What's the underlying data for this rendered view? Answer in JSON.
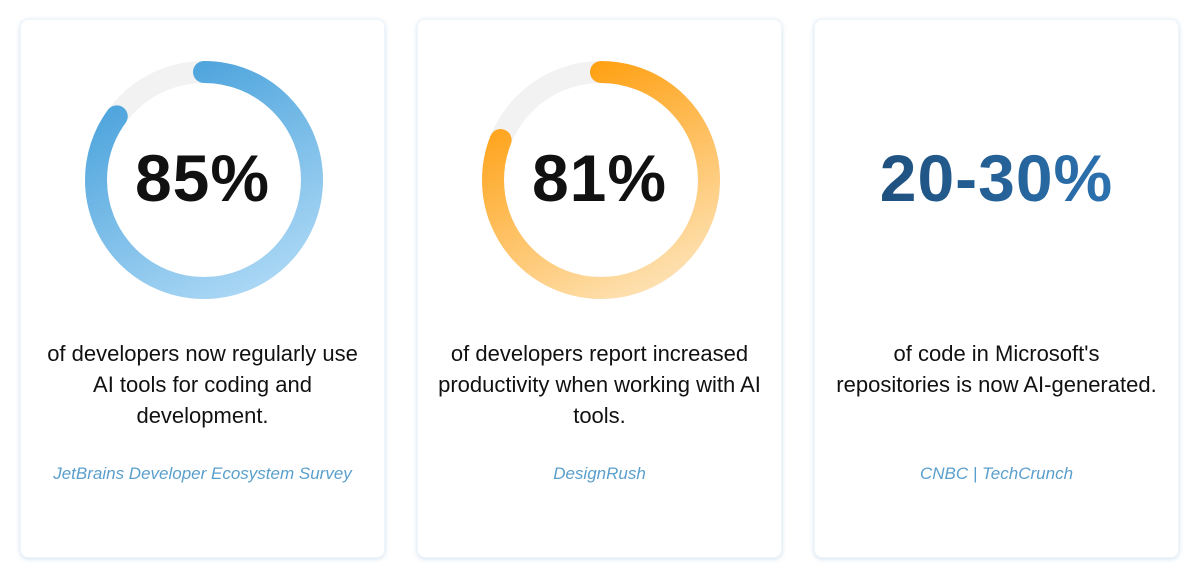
{
  "cards": [
    {
      "value": "85%",
      "percent": 85,
      "description": "of developers now regularly use AI tools for coding and development.",
      "source": "JetBrains Developer Ecosystem Survey",
      "colors": {
        "start": "#4ba3dc",
        "end": "#acd8f5"
      }
    },
    {
      "value": "81%",
      "percent": 81,
      "description": "of developers report increased productivity when working with AI tools.",
      "source": "DesignRush",
      "colors": {
        "start": "#ff9e0d",
        "end": "#fde2b4"
      }
    },
    {
      "value": "20-30%",
      "description": "of code in Microsoft's repositories is now AI-generated.",
      "source": "CNBC | TechCrunch",
      "colors": {
        "start": "#1b4770",
        "end": "#2f7bbd"
      }
    }
  ],
  "track_color": "#f2f2f2"
}
